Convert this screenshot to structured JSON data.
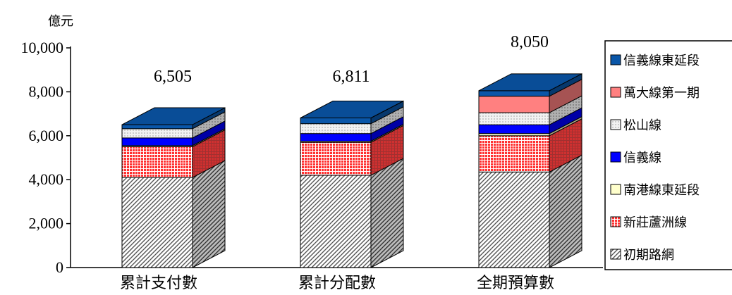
{
  "chart_data": {
    "type": "bar",
    "stacked": true,
    "three_d": true,
    "unit_label": "億元",
    "categories": [
      "累計支付數",
      "累計分配數",
      "全期預算數"
    ],
    "totals": [
      "6,505",
      "6,811",
      "8,050"
    ],
    "ylim": [
      0,
      10000
    ],
    "yticks": [
      0,
      2000,
      4000,
      6000,
      8000,
      10000
    ],
    "ytick_labels": [
      "0",
      "2,000",
      "4,000",
      "6,000",
      "8,000",
      "10,000"
    ],
    "legend_position": "right",
    "series": [
      {
        "name": "初期路網",
        "pattern": "hatch",
        "color": "#808080",
        "values": [
          4100,
          4200,
          4350
        ]
      },
      {
        "name": "新莊蘆洲線",
        "pattern": "grid",
        "color": "#ff4040",
        "values": [
          1400,
          1500,
          1650
        ]
      },
      {
        "name": "南港線東延段",
        "pattern": "solid",
        "color": "#ffffcc",
        "values": [
          50,
          50,
          100
        ]
      },
      {
        "name": "信義線",
        "pattern": "solid",
        "color": "#0000ff",
        "values": [
          350,
          350,
          400
        ]
      },
      {
        "name": "松山線",
        "pattern": "dots",
        "color": "#e0e0e0",
        "values": [
          420,
          450,
          550
        ]
      },
      {
        "name": "萬大線第一期",
        "pattern": "solid",
        "color": "#ff8080",
        "values": [
          0,
          0,
          750
        ]
      },
      {
        "name": "信義線東延段",
        "pattern": "solid",
        "color": "#0a56a8",
        "values": [
          185,
          261,
          250
        ]
      }
    ]
  }
}
